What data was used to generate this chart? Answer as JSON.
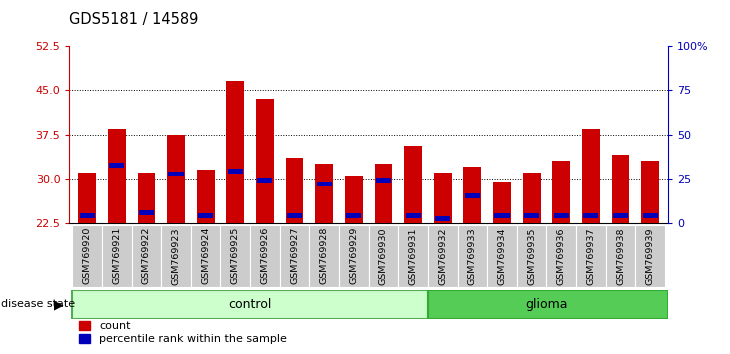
{
  "title": "GDS5181 / 14589",
  "samples": [
    "GSM769920",
    "GSM769921",
    "GSM769922",
    "GSM769923",
    "GSM769924",
    "GSM769925",
    "GSM769926",
    "GSM769927",
    "GSM769928",
    "GSM769929",
    "GSM769930",
    "GSM769931",
    "GSM769932",
    "GSM769933",
    "GSM769934",
    "GSM769935",
    "GSM769936",
    "GSM769937",
    "GSM769938",
    "GSM769939"
  ],
  "count_values": [
    31.0,
    38.5,
    31.0,
    37.5,
    31.5,
    46.5,
    43.5,
    33.5,
    32.5,
    30.5,
    32.5,
    35.5,
    31.0,
    32.0,
    29.5,
    31.0,
    33.0,
    38.5,
    34.0,
    33.0
  ],
  "percentile_values": [
    23.8,
    32.2,
    24.3,
    30.8,
    23.8,
    31.2,
    29.7,
    23.8,
    29.1,
    23.8,
    29.7,
    23.8,
    23.3,
    27.2,
    23.8,
    23.8,
    23.8,
    23.8,
    23.8,
    23.8
  ],
  "n_control": 12,
  "n_glioma": 8,
  "ymin": 22.5,
  "ymax": 52.5,
  "yticks_left": [
    22.5,
    30.0,
    37.5,
    45.0,
    52.5
  ],
  "yticks_right_vals": [
    0,
    25,
    50,
    75,
    100
  ],
  "yticks_right_labels": [
    "0",
    "25",
    "50",
    "75",
    "100%"
  ],
  "bar_color": "#cc0000",
  "percentile_color": "#0000bb",
  "control_fill": "#ccffcc",
  "glioma_fill": "#55cc55",
  "tick_bg_color": "#cccccc",
  "tick_border_color": "#999999",
  "legend_count_label": "count",
  "legend_pct_label": "percentile rank within the sample",
  "disease_state_label": "disease state",
  "control_label": "control",
  "glioma_label": "glioma",
  "grid_ticks": [
    30.0,
    37.5,
    45.0
  ]
}
